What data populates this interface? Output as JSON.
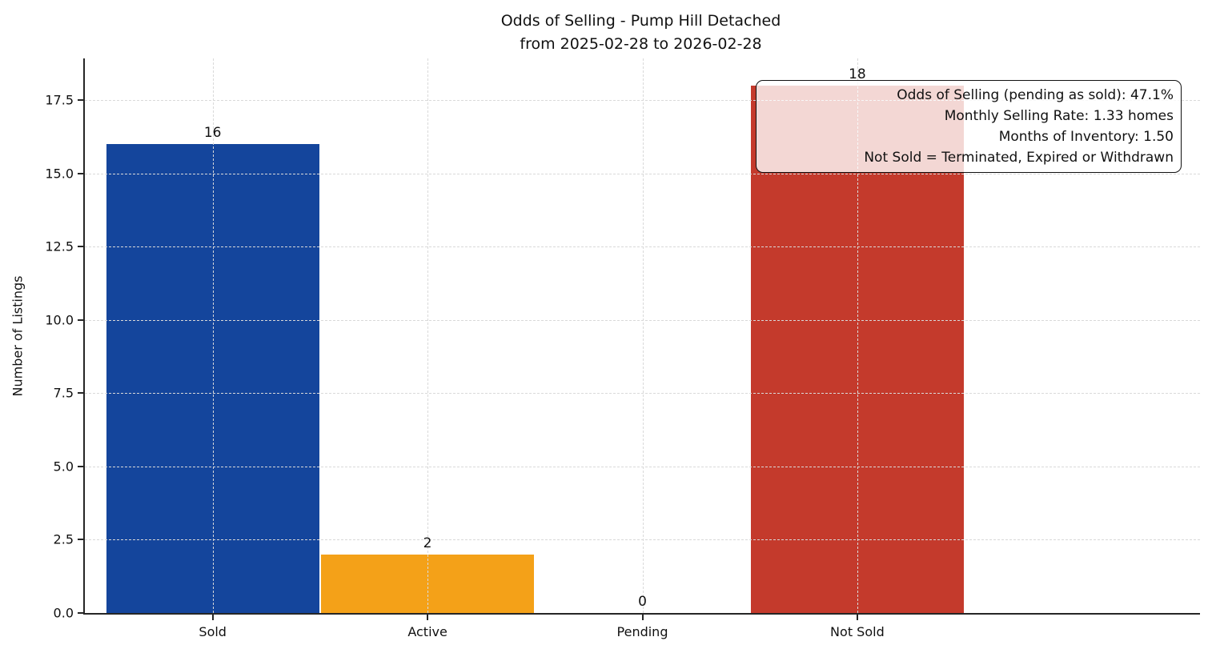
{
  "chart_data": {
    "type": "bar",
    "title": "Odds of Selling - Pump Hill Detached",
    "subtitle": "from 2025-02-28 to 2026-02-28",
    "xlabel": "",
    "ylabel": "Number of Listings",
    "categories": [
      "Sold",
      "Active",
      "Pending",
      "Not Sold"
    ],
    "values": [
      16,
      2,
      0,
      18
    ],
    "value_labels": [
      "16",
      "2",
      "0",
      "18"
    ],
    "bar_colors": [
      "#14459c",
      "#f4a118",
      null,
      "#c43a2c"
    ],
    "yticks": [
      0.0,
      2.5,
      5.0,
      7.5,
      10.0,
      12.5,
      15.0,
      17.5
    ],
    "ytick_labels": [
      "0.0",
      "2.5",
      "5.0",
      "7.5",
      "10.0",
      "12.5",
      "15.0",
      "17.5"
    ],
    "ylim": [
      0,
      18.92
    ],
    "grid": true,
    "grid_style": "dashed",
    "grid_above_bars": true,
    "legend": "none",
    "axis_color": "#262626",
    "grid_color": "#d9d9d9",
    "annotation": {
      "position": "top-right",
      "lines": [
        "Odds of Selling (pending as sold): 47.1%",
        "Monthly Selling Rate: 1.33 homes",
        "Months of Inventory: 1.50",
        "Not Sold = Terminated, Expired or Withdrawn"
      ],
      "stats": {
        "odds_of_selling_pct": 47.1,
        "monthly_selling_rate_homes": 1.33,
        "months_of_inventory": 1.5
      }
    }
  }
}
